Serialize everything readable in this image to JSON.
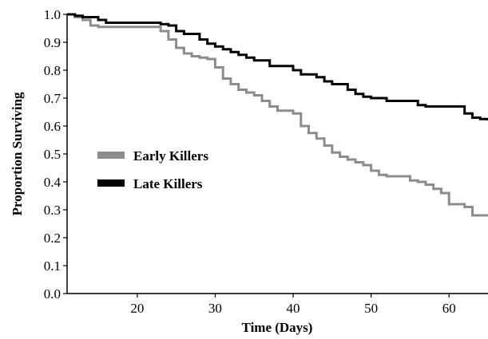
{
  "chart_data": {
    "type": "line",
    "step": true,
    "xlabel": "Time (Days)",
    "ylabel": "Proportion Surviving",
    "xlim": [
      11,
      65
    ],
    "ylim": [
      0,
      1
    ],
    "x_ticks": [
      20,
      30,
      40,
      50,
      60
    ],
    "y_ticks": [
      0.0,
      0.1,
      0.2,
      0.3,
      0.4,
      0.5,
      0.6,
      0.7,
      0.8,
      0.9,
      1.0
    ],
    "y_tick_labels": [
      "0.0",
      "0.1",
      "0.2",
      "0.3",
      "0.4",
      "0.5",
      "0.6",
      "0.7",
      "0.8",
      "0.9",
      "1.0"
    ],
    "grid": false,
    "legend_position": "middle-left",
    "series": [
      {
        "name": "Early Killers",
        "color": "#8c8c8c",
        "x": [
          11,
          12,
          13,
          14,
          15,
          23,
          24,
          25,
          26,
          27,
          28,
          29,
          30,
          31,
          32,
          33,
          34,
          35,
          36,
          37,
          38,
          40,
          41,
          42,
          43,
          44,
          45,
          46,
          47,
          48,
          49,
          50,
          51,
          52,
          55,
          56,
          57,
          58,
          59,
          60,
          62,
          63,
          65
        ],
        "y": [
          1.0,
          0.99,
          0.98,
          0.96,
          0.955,
          0.94,
          0.91,
          0.88,
          0.86,
          0.85,
          0.845,
          0.84,
          0.81,
          0.77,
          0.75,
          0.73,
          0.72,
          0.71,
          0.69,
          0.67,
          0.655,
          0.645,
          0.6,
          0.575,
          0.555,
          0.53,
          0.505,
          0.49,
          0.48,
          0.47,
          0.46,
          0.44,
          0.425,
          0.42,
          0.405,
          0.4,
          0.39,
          0.375,
          0.36,
          0.32,
          0.31,
          0.28,
          0.28
        ]
      },
      {
        "name": "Late Killers",
        "color": "#000000",
        "x": [
          11,
          12,
          13,
          15,
          16,
          23,
          24,
          25,
          26,
          28,
          29,
          30,
          31,
          32,
          33,
          34,
          35,
          37,
          40,
          41,
          43,
          44,
          45,
          47,
          48,
          49,
          50,
          52,
          56,
          57,
          58,
          62,
          63,
          64,
          65
        ],
        "y": [
          1.0,
          0.995,
          0.99,
          0.98,
          0.97,
          0.965,
          0.96,
          0.94,
          0.93,
          0.91,
          0.895,
          0.885,
          0.875,
          0.865,
          0.855,
          0.845,
          0.835,
          0.815,
          0.8,
          0.785,
          0.775,
          0.76,
          0.75,
          0.73,
          0.715,
          0.705,
          0.7,
          0.69,
          0.675,
          0.67,
          0.67,
          0.645,
          0.63,
          0.625,
          0.62
        ]
      }
    ]
  }
}
